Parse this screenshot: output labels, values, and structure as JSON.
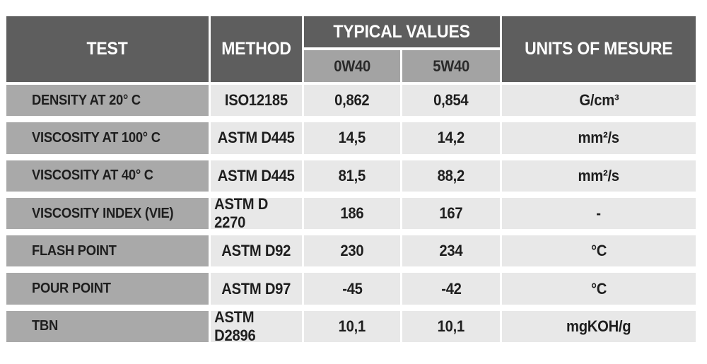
{
  "header": {
    "test": "TEST",
    "method": "METHOD",
    "typical_values": "TYPICAL VALUES",
    "units": "UNITS OF MESURE",
    "grade_1": "0W40",
    "grade_2": "5W40"
  },
  "rows": [
    {
      "test": "DENSITY AT 20° C",
      "method": "ISO12185",
      "v1": "0,862",
      "v2": "0,854",
      "unit": "G/cm³"
    },
    {
      "test": "VISCOSITY AT 100° C",
      "method": "ASTM D445",
      "v1": "14,5",
      "v2": "14,2",
      "unit": "mm²/s"
    },
    {
      "test": "VISCOSITY AT 40° C",
      "method": "ASTM D445",
      "v1": "81,5",
      "v2": "88,2",
      "unit": "mm²/s"
    },
    {
      "test": "VISCOSITY INDEX (VIE)",
      "method": "ASTM D 2270",
      "v1": "186",
      "v2": "167",
      "unit": "-"
    },
    {
      "test": "FLASH POINT",
      "method": "ASTM D92",
      "v1": "230",
      "v2": "234",
      "unit": "°C"
    },
    {
      "test": "POUR POINT",
      "method": "ASTM D97",
      "v1": "-45",
      "v2": "-42",
      "unit": "°C"
    },
    {
      "test": "TBN",
      "method": "ASTM D2896",
      "v1": "10,1",
      "v2": "10,1",
      "unit": "mgKOH/g"
    }
  ],
  "colors": {
    "header_bg": "#5e5e5e",
    "subheader_bg": "#a3a3a3",
    "label_bg": "#a9a9a9",
    "value_bg": "#e8e8e8"
  }
}
